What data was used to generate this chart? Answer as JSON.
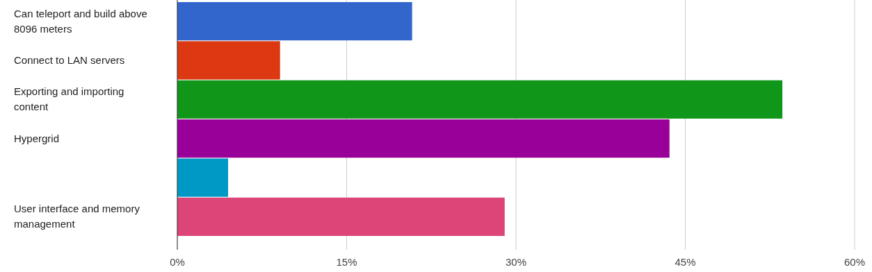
{
  "chart_data": {
    "type": "bar",
    "orientation": "horizontal",
    "categories": [
      "Can teleport and build above 8096 meters",
      "Connect to LAN servers",
      "Exporting and importing content",
      "Hypergrid",
      null,
      "User interface and memory management"
    ],
    "values": [
      20.8,
      9.1,
      53.6,
      43.6,
      4.5,
      29.0
    ],
    "colors": [
      "#3366cc",
      "#dc3912",
      "#109618",
      "#990099",
      "#0099c6",
      "#dd4477"
    ],
    "xlim": [
      0,
      60
    ],
    "xticks": [
      {
        "value": 0,
        "label": "0%"
      },
      {
        "value": 15,
        "label": "15%"
      },
      {
        "value": 30,
        "label": "30%"
      },
      {
        "value": 45,
        "label": "45%"
      },
      {
        "value": 60,
        "label": "60%"
      }
    ],
    "grid": "x"
  }
}
